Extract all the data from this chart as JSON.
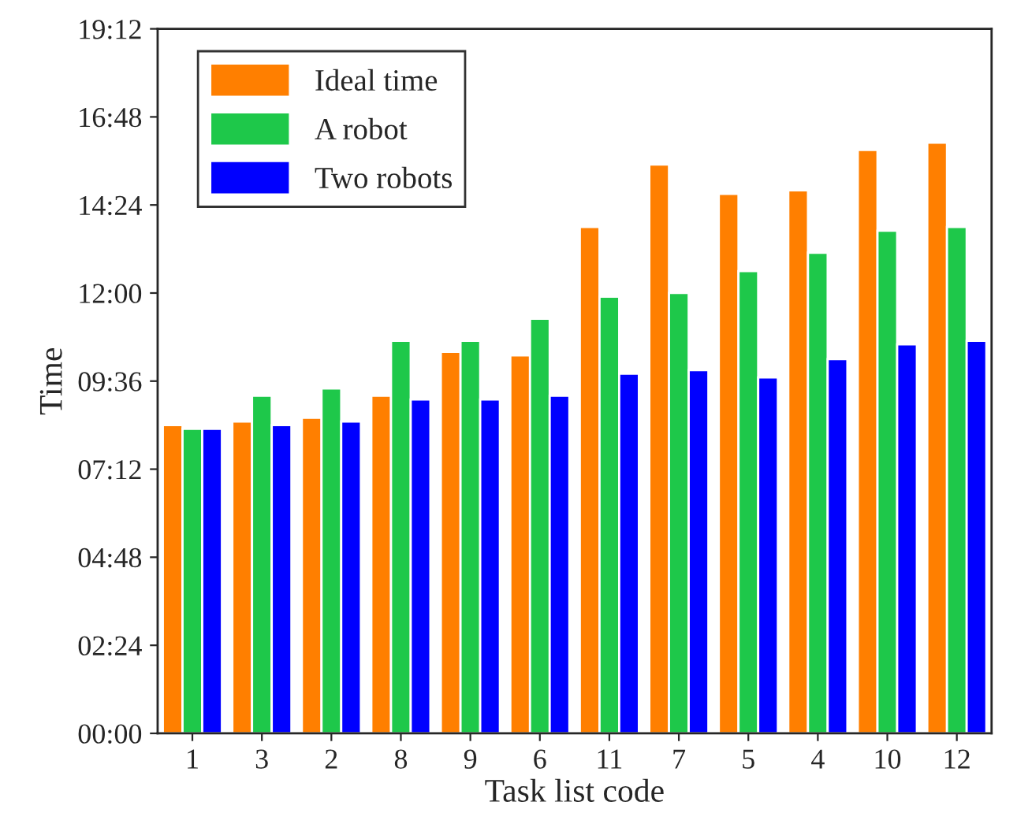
{
  "chart_data": {
    "type": "bar",
    "xlabel": "Task list code",
    "ylabel": "Time",
    "categories": [
      "1",
      "3",
      "2",
      "8",
      "9",
      "6",
      "11",
      "7",
      "5",
      "4",
      "10",
      "12"
    ],
    "series": [
      {
        "name": "Ideal time",
        "color": "#ff7f00",
        "values": [
          8.4,
          8.5,
          8.6,
          9.2,
          10.4,
          10.3,
          13.8,
          15.5,
          14.7,
          14.8,
          15.9,
          16.1
        ]
      },
      {
        "name": "A robot",
        "color": "#1ec84a",
        "values": [
          8.3,
          9.2,
          9.4,
          10.7,
          10.7,
          11.3,
          11.9,
          12.0,
          12.6,
          13.1,
          13.7,
          13.8
        ]
      },
      {
        "name": "Two robots",
        "color": "#0000ff",
        "values": [
          8.3,
          8.4,
          8.5,
          9.1,
          9.1,
          9.2,
          9.8,
          9.9,
          9.7,
          10.2,
          10.6,
          10.7
        ]
      }
    ],
    "ylim": [
      0,
      19.2
    ],
    "yticks": [
      {
        "value": 0,
        "label": "00:00"
      },
      {
        "value": 2.4,
        "label": "02:24"
      },
      {
        "value": 4.8,
        "label": "04:48"
      },
      {
        "value": 7.2,
        "label": "07:12"
      },
      {
        "value": 9.6,
        "label": "09:36"
      },
      {
        "value": 12,
        "label": "12:00"
      },
      {
        "value": 14.4,
        "label": "14:24"
      },
      {
        "value": 16.8,
        "label": "16:48"
      },
      {
        "value": 19.2,
        "label": "19:12"
      }
    ],
    "legend": "top left",
    "grid": false
  }
}
